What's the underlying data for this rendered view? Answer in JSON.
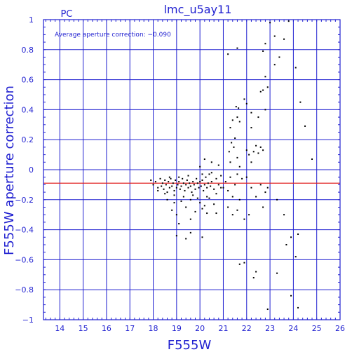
{
  "chart_data": {
    "type": "scatter",
    "title": "lmc_u5ay11",
    "corner_label": "PC",
    "annotation": "Average aperture correction: −0.090",
    "xlabel": "F555W",
    "ylabel": "F555W aperture correction",
    "xlim": [
      13.3,
      26
    ],
    "ylim": [
      -1,
      1
    ],
    "xticks": [
      14,
      15,
      16,
      17,
      18,
      19,
      20,
      21,
      22,
      23,
      24,
      25,
      26
    ],
    "yticks": [
      -1,
      -0.8,
      -0.6,
      -0.4,
      -0.2,
      0,
      0.2,
      0.4,
      0.6,
      0.8,
      1
    ],
    "ytick_labels": [
      "−1",
      "−0.8",
      "−0.6",
      "−0.4",
      "−0.2",
      "0",
      "0.2",
      "0.4",
      "0.6",
      "0.8",
      "1"
    ],
    "grid": true,
    "reference_line": {
      "y": -0.09,
      "color": "#e02020"
    },
    "colors": {
      "axes": "#1f1fd0",
      "grid": "#1f1fd0",
      "points": "#000000"
    },
    "points": [
      [
        17.9,
        -0.07
      ],
      [
        18.0,
        -0.1
      ],
      [
        18.1,
        -0.08
      ],
      [
        18.2,
        -0.12
      ],
      [
        18.3,
        -0.06
      ],
      [
        18.35,
        -0.11
      ],
      [
        18.4,
        -0.09
      ],
      [
        18.45,
        -0.13
      ],
      [
        18.5,
        -0.07
      ],
      [
        18.55,
        -0.1
      ],
      [
        18.6,
        -0.15
      ],
      [
        18.65,
        -0.08
      ],
      [
        18.7,
        -0.12
      ],
      [
        18.75,
        -0.06
      ],
      [
        18.8,
        -0.11
      ],
      [
        18.85,
        -0.09
      ],
      [
        18.9,
        -0.14
      ],
      [
        18.95,
        -0.07
      ],
      [
        19.0,
        -0.12
      ],
      [
        19.05,
        -0.1
      ],
      [
        19.1,
        -0.08
      ],
      [
        19.15,
        -0.13
      ],
      [
        19.2,
        -0.11
      ],
      [
        19.25,
        -0.06
      ],
      [
        19.3,
        -0.09
      ],
      [
        19.35,
        -0.14
      ],
      [
        19.4,
        -0.1
      ],
      [
        19.45,
        -0.07
      ],
      [
        19.5,
        -0.12
      ],
      [
        19.55,
        -0.09
      ],
      [
        19.6,
        -0.11
      ],
      [
        19.65,
        -0.15
      ],
      [
        19.7,
        -0.08
      ],
      [
        19.75,
        -0.1
      ],
      [
        19.8,
        -0.13
      ],
      [
        19.85,
        -0.06
      ],
      [
        19.9,
        -0.09
      ],
      [
        19.95,
        -0.12
      ],
      [
        20.0,
        -0.08
      ],
      [
        20.05,
        -0.11
      ],
      [
        20.1,
        -0.07
      ],
      [
        20.15,
        -0.14
      ],
      [
        20.2,
        -0.1
      ],
      [
        20.25,
        -0.05
      ],
      [
        20.3,
        -0.12
      ],
      [
        20.35,
        -0.09
      ],
      [
        20.4,
        -0.03
      ],
      [
        20.45,
        -0.11
      ],
      [
        20.5,
        -0.08
      ],
      [
        20.6,
        -0.13
      ],
      [
        20.7,
        -0.06
      ],
      [
        20.8,
        -0.1
      ],
      [
        20.9,
        -0.04
      ],
      [
        21.0,
        -0.12
      ],
      [
        18.2,
        -0.14
      ],
      [
        18.5,
        -0.16
      ],
      [
        18.7,
        -0.05
      ],
      [
        18.9,
        -0.17
      ],
      [
        19.1,
        -0.05
      ],
      [
        19.3,
        -0.18
      ],
      [
        19.5,
        -0.04
      ],
      [
        19.7,
        -0.17
      ],
      [
        19.9,
        -0.19
      ],
      [
        20.1,
        -0.03
      ],
      [
        20.3,
        -0.18
      ],
      [
        20.5,
        -0.02
      ],
      [
        20.7,
        -0.16
      ],
      [
        20.9,
        -0.12
      ],
      [
        18.6,
        -0.2
      ],
      [
        18.9,
        -0.22
      ],
      [
        19.2,
        -0.21
      ],
      [
        19.6,
        -0.2
      ],
      [
        20.0,
        -0.22
      ],
      [
        20.2,
        -0.24
      ],
      [
        20.4,
        -0.19
      ],
      [
        20.6,
        -0.23
      ],
      [
        18.8,
        -0.27
      ],
      [
        19.0,
        -0.3
      ],
      [
        19.4,
        -0.25
      ],
      [
        19.8,
        -0.28
      ],
      [
        20.1,
        -0.26
      ],
      [
        20.3,
        -0.29
      ],
      [
        19.1,
        -0.36
      ],
      [
        19.6,
        -0.33
      ],
      [
        20.7,
        -0.29
      ],
      [
        20.0,
        0.02
      ],
      [
        20.2,
        0.07
      ],
      [
        20.5,
        0.05
      ],
      [
        20.8,
        0.03
      ],
      [
        19.4,
        -0.46
      ],
      [
        19.6,
        -0.42
      ],
      [
        20.1,
        -0.45
      ],
      [
        19.0,
        -0.44
      ],
      [
        21.1,
        -0.08
      ],
      [
        21.2,
        -0.14
      ],
      [
        21.3,
        -0.05
      ],
      [
        21.4,
        -0.18
      ],
      [
        21.5,
        -0.1
      ],
      [
        21.6,
        -0.03
      ],
      [
        21.7,
        -0.2
      ],
      [
        21.2,
        -0.25
      ],
      [
        21.4,
        -0.3
      ],
      [
        21.6,
        -0.27
      ],
      [
        21.9,
        -0.33
      ],
      [
        22.1,
        -0.3
      ],
      [
        21.25,
        0.12
      ],
      [
        21.3,
        0.05
      ],
      [
        21.35,
        0.18
      ],
      [
        21.45,
        0.15
      ],
      [
        21.5,
        0.21
      ],
      [
        21.6,
        0.08
      ],
      [
        21.7,
        0.02
      ],
      [
        21.8,
        -0.06
      ],
      [
        21.3,
        0.28
      ],
      [
        21.4,
        0.33
      ],
      [
        21.55,
        0.42
      ],
      [
        21.65,
        0.41
      ],
      [
        21.9,
        0.47
      ],
      [
        22.0,
        0.44
      ],
      [
        22.2,
        0.38
      ],
      [
        21.2,
        0.77
      ],
      [
        21.6,
        0.81
      ],
      [
        21.6,
        0.35
      ],
      [
        21.7,
        0.32
      ],
      [
        22.0,
        0.13
      ],
      [
        22.1,
        0.1
      ],
      [
        22.2,
        0.05
      ],
      [
        22.3,
        0.12
      ],
      [
        22.4,
        0.16
      ],
      [
        22.5,
        0.11
      ],
      [
        22.6,
        0.15
      ],
      [
        22.7,
        0.13
      ],
      [
        22.0,
        -0.05
      ],
      [
        22.2,
        -0.12
      ],
      [
        22.4,
        -0.18
      ],
      [
        22.6,
        -0.1
      ],
      [
        22.8,
        -0.15
      ],
      [
        22.7,
        -0.25
      ],
      [
        22.9,
        -0.12
      ],
      [
        22.5,
        0.35
      ],
      [
        22.6,
        0.52
      ],
      [
        22.7,
        0.53
      ],
      [
        22.8,
        0.62
      ],
      [
        22.9,
        0.55
      ],
      [
        22.2,
        0.28
      ],
      [
        22.8,
        0.4
      ],
      [
        22.7,
        0.79
      ],
      [
        22.8,
        0.84
      ],
      [
        23.0,
        0.98
      ],
      [
        23.2,
        0.89
      ],
      [
        23.4,
        0.75
      ],
      [
        23.6,
        0.87
      ],
      [
        23.8,
        0.99
      ],
      [
        23.2,
        0.7
      ],
      [
        24.1,
        0.68
      ],
      [
        24.3,
        0.45
      ],
      [
        24.5,
        0.29
      ],
      [
        24.8,
        0.07
      ],
      [
        23.3,
        -0.2
      ],
      [
        23.6,
        -0.3
      ],
      [
        23.7,
        -0.5
      ],
      [
        23.9,
        -0.45
      ],
      [
        24.1,
        -0.58
      ],
      [
        24.2,
        -0.43
      ],
      [
        21.7,
        -0.63
      ],
      [
        21.9,
        -0.62
      ],
      [
        22.3,
        -0.72
      ],
      [
        22.4,
        -0.68
      ],
      [
        23.3,
        -0.69
      ],
      [
        23.9,
        -0.84
      ],
      [
        24.2,
        -0.92
      ],
      [
        22.9,
        -0.93
      ]
    ]
  }
}
